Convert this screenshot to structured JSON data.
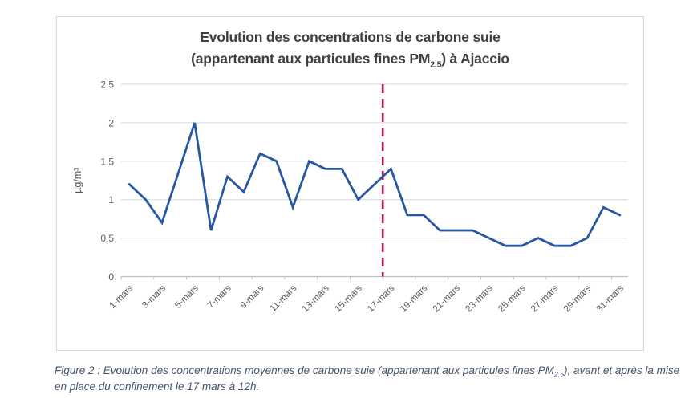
{
  "chart_data": {
    "type": "line",
    "title_line1": "Evolution des concentrations de carbone suie",
    "title_line2_prefix": "(appartenant aux particules fines PM",
    "title_line2_sub": "2.5",
    "title_line2_suffix": ") à Ajaccio",
    "ylabel": "µg/m³",
    "ylim": [
      0,
      2.5
    ],
    "y_ticks": [
      "0",
      "0.5",
      "1",
      "1.5",
      "2",
      "2.5"
    ],
    "categories": [
      "1-mars",
      "2-mars",
      "3-mars",
      "4-mars",
      "5-mars",
      "6-mars",
      "7-mars",
      "8-mars",
      "9-mars",
      "10-mars",
      "11-mars",
      "12-mars",
      "13-mars",
      "14-mars",
      "15-mars",
      "16-mars",
      "17-mars",
      "18-mars",
      "19-mars",
      "20-mars",
      "21-mars",
      "22-mars",
      "23-mars",
      "24-mars",
      "25-mars",
      "26-mars",
      "27-mars",
      "28-mars",
      "29-mars",
      "30-mars",
      "31-mars"
    ],
    "x_tick_labels": [
      "1-mars",
      "3-mars",
      "5-mars",
      "7-mars",
      "9-mars",
      "11-mars",
      "13-mars",
      "15-mars",
      "17-mars",
      "19-mars",
      "21-mars",
      "23-mars",
      "25-mars",
      "27-mars",
      "29-mars",
      "31-mars"
    ],
    "values": [
      1.2,
      1.0,
      0.7,
      1.35,
      2.0,
      0.6,
      1.3,
      1.1,
      1.6,
      1.5,
      0.9,
      1.5,
      1.4,
      1.4,
      1.0,
      1.2,
      1.4,
      0.8,
      0.8,
      0.6,
      0.6,
      0.6,
      0.5,
      0.4,
      0.4,
      0.5,
      0.4,
      0.4,
      0.5,
      0.9,
      0.8
    ],
    "series_color": "#2757A0",
    "annotation_vline": {
      "style": "dashed",
      "color": "#B81D4A",
      "x_between": [
        "16-mars",
        "17-mars"
      ]
    },
    "legend": "none",
    "grid": "horizontal",
    "colors": {
      "grid": "#d9d9d9",
      "axis": "#bfbfbf",
      "tick_text": "#595959",
      "title_text": "#3f3f3f"
    }
  },
  "caption": {
    "prefix": "Figure 2 : Evolution des concentrations moyennes de carbone suie (appartenant aux particules fines PM",
    "sub": "2.5",
    "suffix": "), avant et après la mise en place du confinement le 17 mars à 12h."
  }
}
